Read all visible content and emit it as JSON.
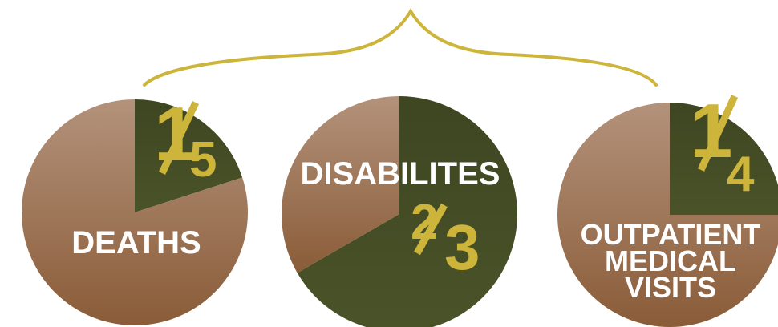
{
  "colors": {
    "background": "#ffffff",
    "slice_dark": "#414a23",
    "slice_tan_top": "#b3927b",
    "slice_tan_bottom": "#8a5c38",
    "fraction_text": "#cdb43a",
    "label_text": "#ffffff",
    "brace": "#cdb43a"
  },
  "chart_data": [
    {
      "type": "pie",
      "label": "DEATHS",
      "fraction": {
        "numerator": "1",
        "denominator": "5"
      },
      "slices": [
        {
          "share": 0.2,
          "color": "#414a23",
          "highlighted": true
        },
        {
          "share": 0.8,
          "color": "#8a5c38",
          "highlighted": false
        }
      ]
    },
    {
      "type": "pie",
      "label": "DISABILITES",
      "fraction": {
        "numerator": "2",
        "denominator": "3"
      },
      "slices": [
        {
          "share": 0.6667,
          "color": "#414a23",
          "highlighted": true
        },
        {
          "share": 0.3333,
          "color": "#8a5c38",
          "highlighted": false
        }
      ]
    },
    {
      "type": "pie",
      "label_lines": [
        "OUTPATIENT",
        "MEDICAL",
        "VISITS"
      ],
      "fraction": {
        "numerator": "1",
        "denominator": "4"
      },
      "slices": [
        {
          "share": 0.25,
          "color": "#414a23",
          "highlighted": true
        },
        {
          "share": 0.75,
          "color": "#8a5c38",
          "highlighted": false
        }
      ]
    }
  ]
}
